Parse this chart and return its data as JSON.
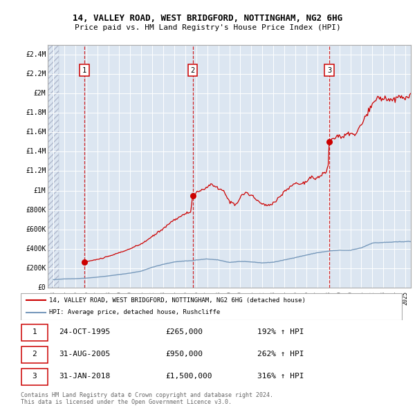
{
  "title1": "14, VALLEY ROAD, WEST BRIDGFORD, NOTTINGHAM, NG2 6HG",
  "title2": "Price paid vs. HM Land Registry's House Price Index (HPI)",
  "ylabel_ticks": [
    "£0",
    "£200K",
    "£400K",
    "£600K",
    "£800K",
    "£1M",
    "£1.2M",
    "£1.4M",
    "£1.6M",
    "£1.8M",
    "£2M",
    "£2.2M",
    "£2.4M"
  ],
  "ytick_values": [
    0,
    200000,
    400000,
    600000,
    800000,
    1000000,
    1200000,
    1400000,
    1600000,
    1800000,
    2000000,
    2200000,
    2400000
  ],
  "xlim_start": 1992.5,
  "xlim_end": 2025.5,
  "ylim_min": 0,
  "ylim_max": 2500000,
  "sale_dates": [
    1995.82,
    2005.67,
    2018.08
  ],
  "sale_prices": [
    265000,
    950000,
    1500000
  ],
  "sale_labels": [
    "1",
    "2",
    "3"
  ],
  "legend_line1": "14, VALLEY ROAD, WEST BRIDGFORD, NOTTINGHAM, NG2 6HG (detached house)",
  "legend_line2": "HPI: Average price, detached house, Rushcliffe",
  "table_rows": [
    {
      "num": "1",
      "date": "24-OCT-1995",
      "price": "£265,000",
      "hpi": "192% ↑ HPI"
    },
    {
      "num": "2",
      "date": "31-AUG-2005",
      "price": "£950,000",
      "hpi": "262% ↑ HPI"
    },
    {
      "num": "3",
      "date": "31-JAN-2018",
      "price": "£1,500,000",
      "hpi": "316% ↑ HPI"
    }
  ],
  "footnote1": "Contains HM Land Registry data © Crown copyright and database right 2024.",
  "footnote2": "This data is licensed under the Open Government Licence v3.0.",
  "red_line_color": "#cc0000",
  "blue_line_color": "#7799bb",
  "hatch_bg_color": "#dce6f1",
  "white": "#ffffff",
  "box_border": "#cc0000",
  "label_color": "#222222",
  "footnote_color": "#666666"
}
